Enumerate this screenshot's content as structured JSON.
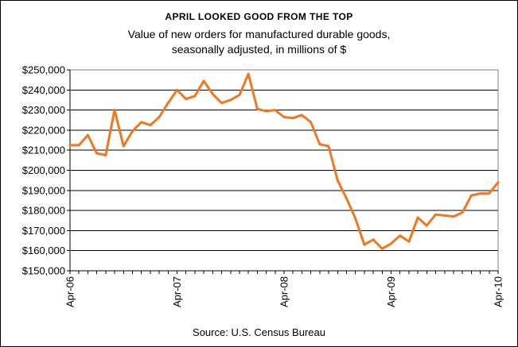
{
  "chart_data": {
    "type": "line",
    "title": "APRIL LOOKED GOOD FROM THE TOP",
    "subtitle_lines": [
      "Value of new orders for manufactured durable goods,",
      "seasonally adjusted, in millions of $"
    ],
    "source": "Source: U.S. Census Bureau",
    "xlabel": "",
    "ylabel": "",
    "ylim": [
      150000,
      250000
    ],
    "y_ticks": [
      150000,
      160000,
      170000,
      180000,
      190000,
      200000,
      210000,
      220000,
      230000,
      240000,
      250000
    ],
    "y_tick_labels": [
      "$150,000",
      "$160,000",
      "$170,000",
      "$180,000",
      "$190,000",
      "$200,000",
      "$210,000",
      "$220,000",
      "$230,000",
      "$240,000",
      "$250,000"
    ],
    "x_ticks": [
      0,
      12,
      24,
      36,
      48
    ],
    "x_tick_labels": [
      "Apr-06",
      "Apr-07",
      "Apr-08",
      "Apr-09",
      "Apr-10"
    ],
    "grid": true,
    "line_color": "#F07820",
    "series": [
      {
        "x": [
          "Apr-06",
          "May-06",
          "Jun-06",
          "Jul-06",
          "Aug-06",
          "Sep-06",
          "Oct-06",
          "Nov-06",
          "Dec-06",
          "Jan-07",
          "Feb-07",
          "Mar-07",
          "Apr-07",
          "May-07",
          "Jun-07",
          "Jul-07",
          "Aug-07",
          "Sep-07",
          "Oct-07",
          "Nov-07",
          "Dec-07",
          "Jan-08",
          "Feb-08",
          "Mar-08",
          "Apr-08",
          "May-08",
          "Jun-08",
          "Jul-08",
          "Aug-08",
          "Sep-08",
          "Oct-08",
          "Nov-08",
          "Dec-08",
          "Jan-09",
          "Feb-09",
          "Mar-09",
          "Apr-09",
          "May-09",
          "Jun-09",
          "Jul-09",
          "Aug-09",
          "Sep-09",
          "Oct-09",
          "Nov-09",
          "Dec-09",
          "Jan-10",
          "Feb-10",
          "Mar-10",
          "Apr-10"
        ],
        "values": [
          212500,
          212500,
          217500,
          208500,
          207500,
          230000,
          212000,
          219500,
          224000,
          222500,
          226500,
          233500,
          240000,
          235500,
          237000,
          244500,
          238000,
          233500,
          235000,
          237500,
          248000,
          230500,
          229500,
          230000,
          226500,
          226000,
          227500,
          224000,
          213000,
          212000,
          195000,
          186000,
          176000,
          163000,
          165500,
          161000,
          163500,
          167500,
          164500,
          176500,
          172500,
          178000,
          177500,
          177000,
          179000,
          187500,
          188500,
          188500,
          194000
        ]
      }
    ]
  }
}
